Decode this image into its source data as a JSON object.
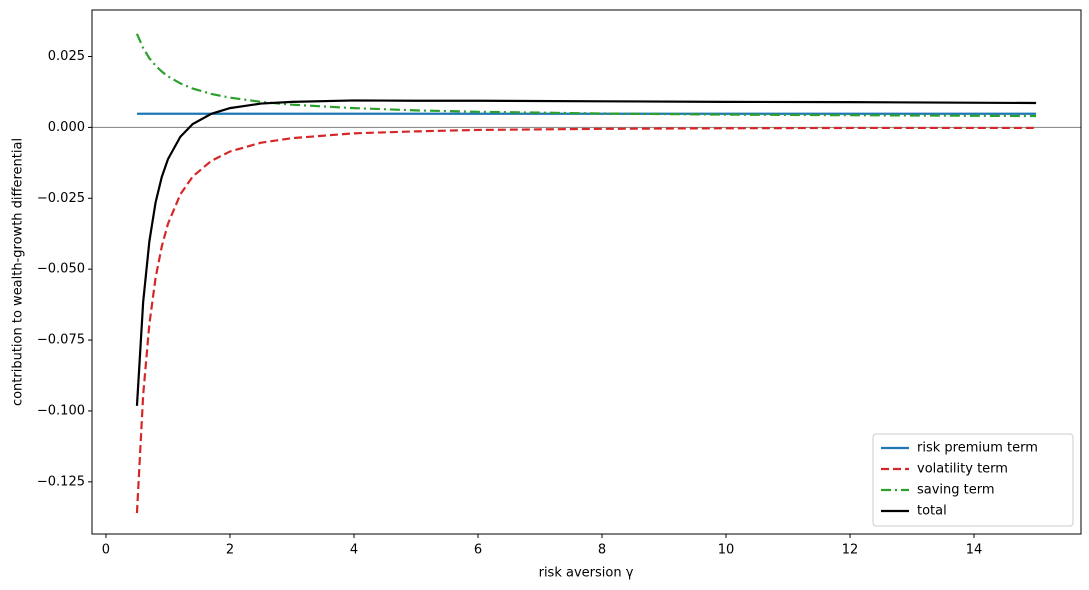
{
  "chart_data": {
    "type": "line",
    "xlabel": "risk aversion γ",
    "ylabel": "contribution to wealth-growth differential",
    "x": [
      0.5,
      0.6,
      0.7,
      0.8,
      0.9,
      1,
      1.2,
      1.4,
      1.7,
      2,
      2.5,
      3,
      4,
      5,
      6,
      8,
      10,
      12,
      15
    ],
    "series": [
      {
        "name": "risk premium term",
        "color": "#1f77b4",
        "dash": "solid",
        "values": [
          0.0048,
          0.0048,
          0.0048,
          0.0048,
          0.0048,
          0.0048,
          0.0048,
          0.0048,
          0.0048,
          0.0048,
          0.0048,
          0.0048,
          0.0048,
          0.0048,
          0.0048,
          0.0048,
          0.0048,
          0.0048,
          0.0048
        ]
      },
      {
        "name": "volatility term",
        "color": "#d62728",
        "dash": "dashed",
        "values": [
          -0.136,
          -0.0944,
          -0.0694,
          -0.0531,
          -0.042,
          -0.034,
          -0.0236,
          -0.0173,
          -0.0118,
          -0.0085,
          -0.0054,
          -0.0038,
          -0.0021,
          -0.0014,
          -0.0009,
          -0.0005,
          -0.0003,
          -0.0002,
          -0.0002
        ]
      },
      {
        "name": "saving term",
        "color": "#2ca02c",
        "dash": "dashdot",
        "values": [
          0.033,
          0.028,
          0.0244,
          0.0218,
          0.0197,
          0.018,
          0.0155,
          0.0137,
          0.0118,
          0.0105,
          0.009,
          0.008,
          0.0068,
          0.006,
          0.0055,
          0.0049,
          0.0045,
          0.0043,
          0.004
        ]
      },
      {
        "name": "total",
        "color": "#000000",
        "dash": "solid",
        "values": [
          -0.0982,
          -0.0616,
          -0.0402,
          -0.0265,
          -0.0175,
          -0.0112,
          -0.0033,
          0.0012,
          0.0048,
          0.0068,
          0.0084,
          0.009,
          0.0095,
          0.0094,
          0.0094,
          0.0092,
          0.009,
          0.0089,
          0.0086
        ]
      }
    ],
    "hline": 0,
    "xlim": [
      -0.225,
      15.725
    ],
    "ylim": [
      -0.1434,
      0.0414
    ],
    "xticks": [
      0,
      2,
      4,
      6,
      8,
      10,
      12,
      14
    ],
    "yticks": [
      {
        "value": -0.125,
        "label": "−0.125"
      },
      {
        "value": -0.1,
        "label": "−0.100"
      },
      {
        "value": -0.075,
        "label": "−0.075"
      },
      {
        "value": -0.05,
        "label": "−0.050"
      },
      {
        "value": -0.025,
        "label": "−0.025"
      },
      {
        "value": 0,
        "label": "0.000"
      },
      0.025
    ],
    "legend": "lower right",
    "grid": false
  }
}
